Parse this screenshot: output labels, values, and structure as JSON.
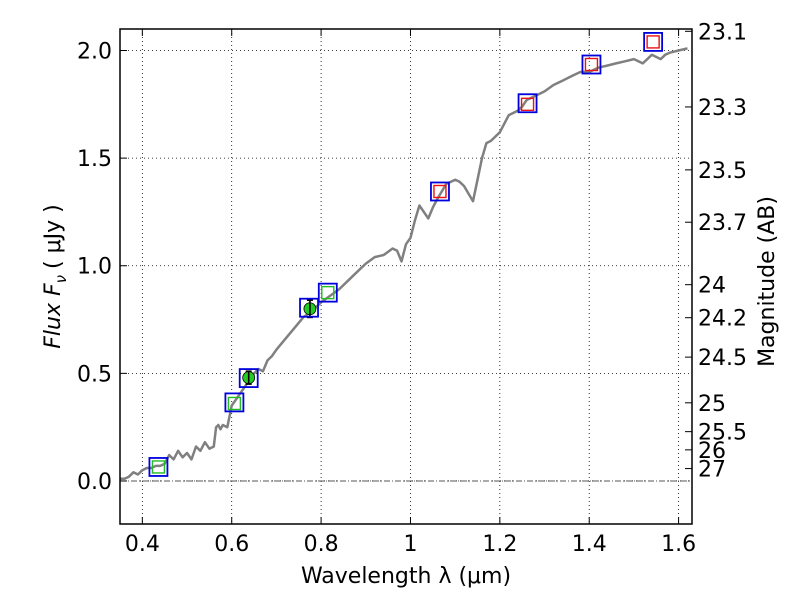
{
  "chart_data": {
    "type": "line",
    "xlabel": "Wavelength  λ (μm)",
    "ylabel": "Flux  F",
    "ylabel_sub": "ν",
    "ylabel_unit": "( μJy )",
    "y2label": "Magnitude (AB)",
    "xlim": [
      0.35,
      1.63
    ],
    "ylim": [
      -0.2,
      2.1
    ],
    "grid": true,
    "x_ticks": [
      0.4,
      0.6,
      0.8,
      1.0,
      1.2,
      1.4,
      1.6
    ],
    "x_tick_labels": [
      "0.4",
      "0.6",
      "0.8",
      "1",
      "1.2",
      "1.4",
      "1.6"
    ],
    "y_ticks": [
      0.0,
      0.5,
      1.0,
      1.5,
      2.0
    ],
    "y_tick_labels": [
      "0.0",
      "0.5",
      "1.0",
      "1.5",
      "2.0"
    ],
    "mag_ticks": [
      23.1,
      23.3,
      23.5,
      23.7,
      24,
      24.2,
      24.5,
      25,
      25.5,
      26,
      27
    ],
    "mag_tick_labels": [
      "23.1",
      "23.3",
      "23.5",
      "23.7",
      "24",
      "24.2",
      "24.5",
      "25",
      "25.5",
      "26",
      "27"
    ],
    "colors": {
      "sed_line": "#808080",
      "observed_box": "#0000dd",
      "model_red": "#ee1111",
      "model_green": "#22bb22",
      "measured_fill": "#22cc22",
      "zero_line": "#555555"
    },
    "series": [
      {
        "style": "sed",
        "x": [
          0.35,
          0.36,
          0.37,
          0.38,
          0.39,
          0.4,
          0.41,
          0.42,
          0.43,
          0.44,
          0.45,
          0.46,
          0.47,
          0.48,
          0.49,
          0.5,
          0.51,
          0.52,
          0.53,
          0.54,
          0.55,
          0.56,
          0.565,
          0.57,
          0.575,
          0.58,
          0.59,
          0.6,
          0.61,
          0.62,
          0.63,
          0.64,
          0.65,
          0.66,
          0.67,
          0.68,
          0.69,
          0.7,
          0.72,
          0.74,
          0.76,
          0.78,
          0.8,
          0.82,
          0.84,
          0.86,
          0.88,
          0.9,
          0.92,
          0.94,
          0.96,
          0.97,
          0.98,
          0.99,
          1.0,
          1.01,
          1.02,
          1.04,
          1.05,
          1.06,
          1.08,
          1.1,
          1.11,
          1.12,
          1.14,
          1.15,
          1.16,
          1.17,
          1.18,
          1.2,
          1.22,
          1.24,
          1.25,
          1.26,
          1.28,
          1.3,
          1.32,
          1.34,
          1.36,
          1.38,
          1.4,
          1.42,
          1.44,
          1.46,
          1.48,
          1.5,
          1.52,
          1.54,
          1.56,
          1.57,
          1.58,
          1.6,
          1.62
        ],
        "y": [
          0.01,
          0.01,
          0.02,
          0.04,
          0.03,
          0.05,
          0.06,
          0.06,
          0.07,
          0.07,
          0.08,
          0.12,
          0.1,
          0.14,
          0.11,
          0.13,
          0.1,
          0.16,
          0.14,
          0.18,
          0.15,
          0.16,
          0.25,
          0.26,
          0.24,
          0.26,
          0.25,
          0.35,
          0.38,
          0.41,
          0.44,
          0.47,
          0.5,
          0.52,
          0.51,
          0.56,
          0.58,
          0.61,
          0.66,
          0.71,
          0.76,
          0.79,
          0.83,
          0.86,
          0.89,
          0.93,
          0.97,
          1.01,
          1.04,
          1.05,
          1.08,
          1.07,
          1.02,
          1.1,
          1.13,
          1.21,
          1.28,
          1.22,
          1.27,
          1.31,
          1.38,
          1.4,
          1.39,
          1.37,
          1.3,
          1.4,
          1.5,
          1.57,
          1.58,
          1.62,
          1.7,
          1.72,
          1.74,
          1.77,
          1.79,
          1.81,
          1.84,
          1.86,
          1.88,
          1.9,
          1.9,
          1.92,
          1.93,
          1.94,
          1.95,
          1.96,
          1.94,
          1.98,
          1.96,
          1.98,
          1.99,
          2.0,
          2.01
        ]
      },
      {
        "style": "observed",
        "x": [
          0.436,
          0.606,
          0.638,
          0.773,
          0.815,
          1.066,
          1.262,
          1.405,
          1.543
        ],
        "y": [
          0.065,
          0.365,
          0.478,
          0.805,
          0.875,
          1.345,
          1.755,
          1.935,
          2.04
        ]
      },
      {
        "style": "model",
        "x": [
          0.436,
          0.606,
          0.815,
          1.066,
          1.262,
          1.405,
          1.543
        ],
        "y": [
          0.065,
          0.36,
          0.875,
          1.345,
          1.75,
          1.935,
          2.04
        ],
        "colors": [
          "model_green",
          "model_green",
          "model_green",
          "model_red",
          "model_red",
          "model_red",
          "model_red"
        ]
      },
      {
        "style": "measured",
        "x": [
          0.638,
          0.775
        ],
        "y": [
          0.48,
          0.8
        ],
        "yerr": [
          0.03,
          0.04
        ]
      }
    ]
  }
}
